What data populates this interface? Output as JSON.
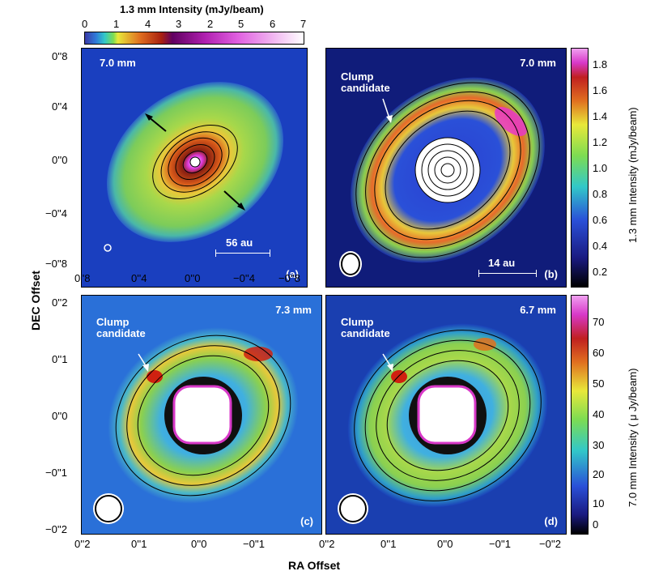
{
  "top_colorbar": {
    "title": "1.3 mm Intensity (mJy/beam)",
    "ticks": [
      "0",
      "1",
      "4",
      "3",
      "2",
      "5",
      "6",
      "7"
    ]
  },
  "right_colorbar_top": {
    "label": "1.3 mm Intensity (mJy/beam)",
    "ticks": [
      "1.8",
      "1.6",
      "1.4",
      "1.2",
      "1.0",
      "0.8",
      "0.6",
      "0.4",
      "0.2"
    ]
  },
  "right_colorbar_bottom": {
    "label": "7.0 mm Intensity ( μ Jy/beam)",
    "ticks": [
      "70",
      "60",
      "50",
      "40",
      "30",
      "20",
      "10",
      "0"
    ]
  },
  "panels": {
    "a": {
      "letter": "(a)",
      "wavelength": "7.0 mm",
      "scale_label": "56 au",
      "yticks": [
        "0''8",
        "0''4",
        "0''0",
        "−0''4",
        "−0''8"
      ],
      "xticks": [
        "0''8",
        "0''4",
        "0''0",
        "−0''4",
        "−0''8"
      ]
    },
    "b": {
      "letter": "(b)",
      "wavelength": "7.0 mm",
      "scale_label": "14 au",
      "clump_label": [
        "Clump",
        "candidate"
      ]
    },
    "c": {
      "letter": "(c)",
      "wavelength": "7.3 mm",
      "clump_label": [
        "Clump",
        "candidate"
      ],
      "yticks": [
        "0''2",
        "0''1",
        "0''0",
        "−0''1",
        "−0''2"
      ],
      "xticks": [
        "0''2",
        "0''1",
        "0''0",
        "−0''1"
      ]
    },
    "d": {
      "letter": "(d)",
      "wavelength": "6.7 mm",
      "clump_label": [
        "Clump",
        "candidate"
      ],
      "xticks": [
        "0''2",
        "0''1",
        "0''0",
        "−0''1",
        "−0''2"
      ]
    }
  },
  "axes": {
    "ylabel": "DEC Offset",
    "xlabel": "RA Offset"
  },
  "colors": {
    "background_blue": "#1a3fbf",
    "ring_green": "#7fd04a",
    "ring_red": "#e03a1e",
    "ring_magenta": "#e838c8"
  }
}
